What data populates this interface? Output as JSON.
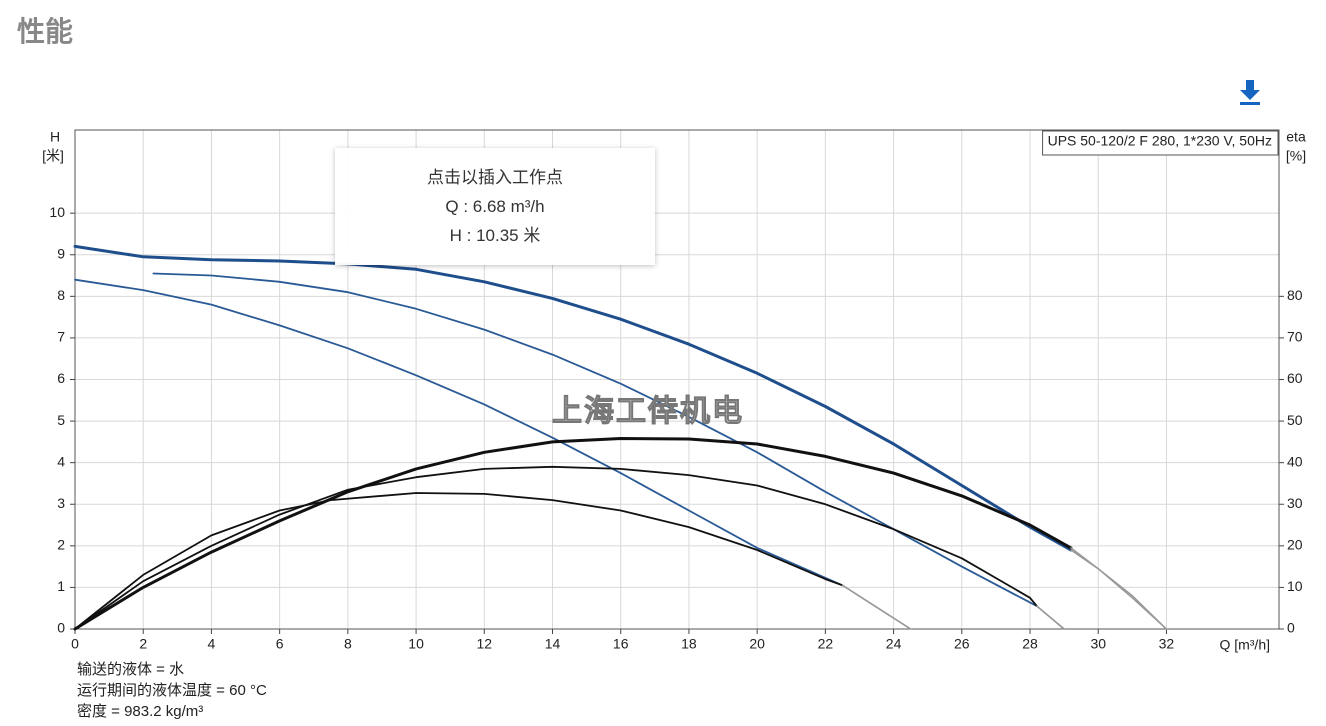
{
  "title": "性能",
  "tooltip": {
    "heading": "点击以插入工作点",
    "q": "Q : 6.68 m³/h",
    "h": "H : 10.35 米"
  },
  "watermark": "上海工倖机电",
  "notes": [
    "输送的液体 = 水",
    "运行期间的液体温度 = 60 °C",
    "密度 = 983.2 kg/m³"
  ],
  "chart_data": {
    "type": "line",
    "legend_text": "UPS 50-120/2 F 280, 1*230 V, 50Hz",
    "y_label": "H",
    "y_unit": "[米]",
    "y2_label": "eta",
    "y2_unit": "[%]",
    "x_label": "Q [m³/h]",
    "xlim": [
      0,
      35.3
    ],
    "xticks": [
      0,
      2,
      4,
      6,
      8,
      10,
      12,
      14,
      16,
      18,
      20,
      22,
      24,
      26,
      28,
      30,
      32
    ],
    "ylim": [
      0,
      12
    ],
    "yticks": [
      0,
      1,
      2,
      3,
      4,
      5,
      6,
      7,
      8,
      9,
      10
    ],
    "y2lim": [
      0,
      120
    ],
    "y2ticks": [
      0,
      10,
      20,
      30,
      40,
      50,
      60,
      70,
      80
    ],
    "grid": true,
    "series": [
      {
        "color": "#1f4e8c",
        "width": 3,
        "x": [
          0,
          2,
          4,
          6,
          8,
          10,
          12,
          14,
          16,
          18,
          20,
          22,
          24,
          26,
          28,
          29.2
        ],
        "values": [
          9.2,
          8.95,
          8.88,
          8.85,
          8.78,
          8.65,
          8.35,
          7.95,
          7.45,
          6.85,
          6.15,
          5.35,
          4.45,
          3.45,
          2.45,
          1.9
        ]
      },
      {
        "color": "#999999",
        "width": 1.5,
        "x": [
          29.2,
          30,
          31,
          32
        ],
        "values": [
          1.9,
          1.45,
          0.8,
          0
        ]
      },
      {
        "color": "#2a5a96",
        "width": 1.8,
        "x": [
          2.3,
          4,
          6,
          8,
          10,
          12,
          14,
          16,
          18,
          20,
          22,
          24,
          26,
          28.2
        ],
        "values": [
          8.55,
          8.5,
          8.35,
          8.1,
          7.7,
          7.2,
          6.6,
          5.9,
          5.1,
          4.25,
          3.3,
          2.4,
          1.5,
          0.55
        ]
      },
      {
        "color": "#999999",
        "width": 1.5,
        "x": [
          28.2,
          29
        ],
        "values": [
          0.55,
          0
        ]
      },
      {
        "color": "#2a5a96",
        "width": 1.8,
        "x": [
          0,
          2,
          4,
          6,
          8,
          10,
          12,
          14,
          16,
          18,
          20,
          22.5
        ],
        "values": [
          8.4,
          8.15,
          7.8,
          7.3,
          6.75,
          6.1,
          5.4,
          4.6,
          3.75,
          2.85,
          1.95,
          1.05
        ]
      },
      {
        "color": "#999999",
        "width": 1.5,
        "x": [
          22.5,
          24.5
        ],
        "values": [
          1.05,
          0
        ]
      },
      {
        "color": "#111111",
        "width": 3,
        "axis": "y2",
        "x": [
          0,
          2,
          4,
          6,
          8,
          10,
          12,
          14,
          16,
          18,
          20,
          22,
          24,
          26,
          28,
          29.2
        ],
        "values": [
          0,
          10,
          18.5,
          26,
          33,
          38.5,
          42.5,
          45,
          45.8,
          45.7,
          44.5,
          41.5,
          37.5,
          32,
          25,
          19.5
        ]
      },
      {
        "color": "#999999",
        "width": 1.5,
        "axis": "y2",
        "x": [
          29.2,
          30,
          31,
          32
        ],
        "values": [
          19.5,
          14.5,
          7.5,
          0
        ]
      },
      {
        "color": "#111111",
        "width": 1.8,
        "axis": "y2",
        "x": [
          0,
          2,
          4,
          6,
          8,
          10,
          12,
          14,
          16,
          18,
          20,
          22,
          24,
          26,
          28,
          28.2
        ],
        "values": [
          0,
          11.5,
          20,
          27.5,
          33.5,
          36.5,
          38.5,
          39,
          38.5,
          37,
          34.5,
          30,
          24,
          17,
          7.5,
          5.5
        ]
      },
      {
        "color": "#999999",
        "width": 1.5,
        "axis": "y2",
        "x": [
          28.2,
          29
        ],
        "values": [
          5.5,
          0
        ]
      },
      {
        "color": "#111111",
        "width": 1.8,
        "axis": "y2",
        "x": [
          0,
          2,
          4,
          6,
          7.5,
          10,
          12,
          14,
          16,
          18,
          20,
          22,
          22.5
        ],
        "values": [
          0,
          13,
          22.5,
          28.5,
          31,
          32.7,
          32.5,
          31,
          28.5,
          24.5,
          19,
          12,
          10.5
        ]
      },
      {
        "color": "#999999",
        "width": 1.5,
        "axis": "y2",
        "x": [
          22.5,
          24.5
        ],
        "values": [
          10.5,
          0
        ]
      }
    ]
  }
}
